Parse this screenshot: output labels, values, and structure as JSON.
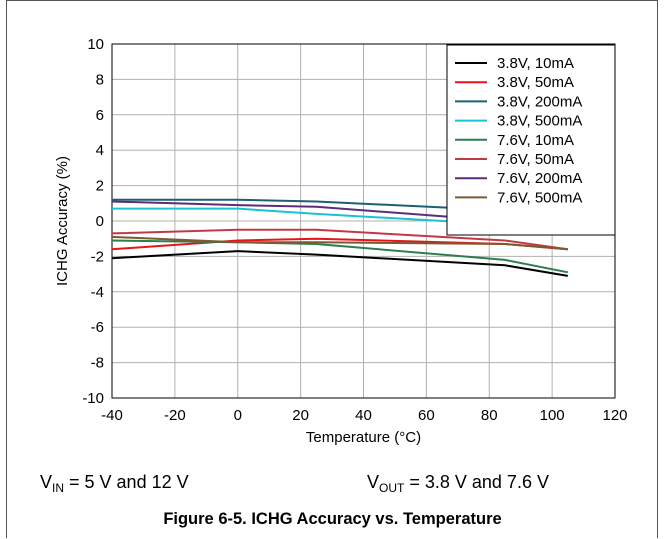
{
  "chart_data": {
    "type": "line",
    "title": "",
    "xlabel": "Temperature (°C)",
    "ylabel": "ICHG Accuracy (%)",
    "xlim": [
      -40,
      120
    ],
    "ylim": [
      -10,
      10
    ],
    "xticks": [
      -40,
      -20,
      0,
      20,
      40,
      60,
      80,
      100,
      120
    ],
    "yticks": [
      -10,
      -8,
      -6,
      -4,
      -2,
      0,
      2,
      4,
      6,
      8,
      10
    ],
    "grid": true,
    "legend_position": "top-right",
    "series": [
      {
        "name": "3.8V, 10mA",
        "color": "#000000",
        "x": [
          -40,
          0,
          25,
          85,
          105
        ],
        "y": [
          -2.1,
          -1.7,
          -1.9,
          -2.5,
          -3.1
        ]
      },
      {
        "name": "3.8V, 50mA",
        "color": "#e8141c",
        "x": [
          -40,
          0,
          25,
          85,
          105
        ],
        "y": [
          -1.6,
          -1.1,
          -1.0,
          -1.3,
          -1.6
        ]
      },
      {
        "name": "3.8V, 200mA",
        "color": "#1f5f73",
        "x": [
          -40,
          0,
          25,
          85,
          105
        ],
        "y": [
          1.2,
          1.2,
          1.1,
          0.6,
          0.4
        ]
      },
      {
        "name": "3.8V, 500mA",
        "color": "#19c2d6",
        "x": [
          -40,
          0,
          25,
          85,
          105
        ],
        "y": [
          0.7,
          0.7,
          0.4,
          -0.2,
          -0.4
        ]
      },
      {
        "name": "7.6V, 10mA",
        "color": "#2e7d4f",
        "x": [
          -40,
          0,
          25,
          85,
          105
        ],
        "y": [
          -1.1,
          -1.2,
          -1.3,
          -2.2,
          -2.9
        ]
      },
      {
        "name": "7.6V, 50mA",
        "color": "#c03a45",
        "x": [
          -40,
          0,
          25,
          85,
          105
        ],
        "y": [
          -0.7,
          -0.5,
          -0.5,
          -1.1,
          -1.6
        ]
      },
      {
        "name": "7.6V, 200mA",
        "color": "#5b2e7a",
        "x": [
          -40,
          0,
          25,
          85,
          105
        ],
        "y": [
          1.1,
          0.9,
          0.8,
          0.0,
          -0.2
        ]
      },
      {
        "name": "7.6V, 500mA",
        "color": "#7a5a2e",
        "x": [
          -40,
          0,
          25,
          85,
          105
        ],
        "y": [
          -0.9,
          -1.2,
          -1.2,
          -1.3,
          -1.6
        ]
      }
    ]
  },
  "conditions": {
    "vin": {
      "sym": "V",
      "sub": "IN",
      "rest": " = 5 V and 12 V"
    },
    "vout": {
      "sym": "V",
      "sub": "OUT",
      "rest": " = 3.8 V and 7.6 V"
    }
  },
  "caption": "Figure 6-5. ICHG Accuracy vs. Temperature"
}
